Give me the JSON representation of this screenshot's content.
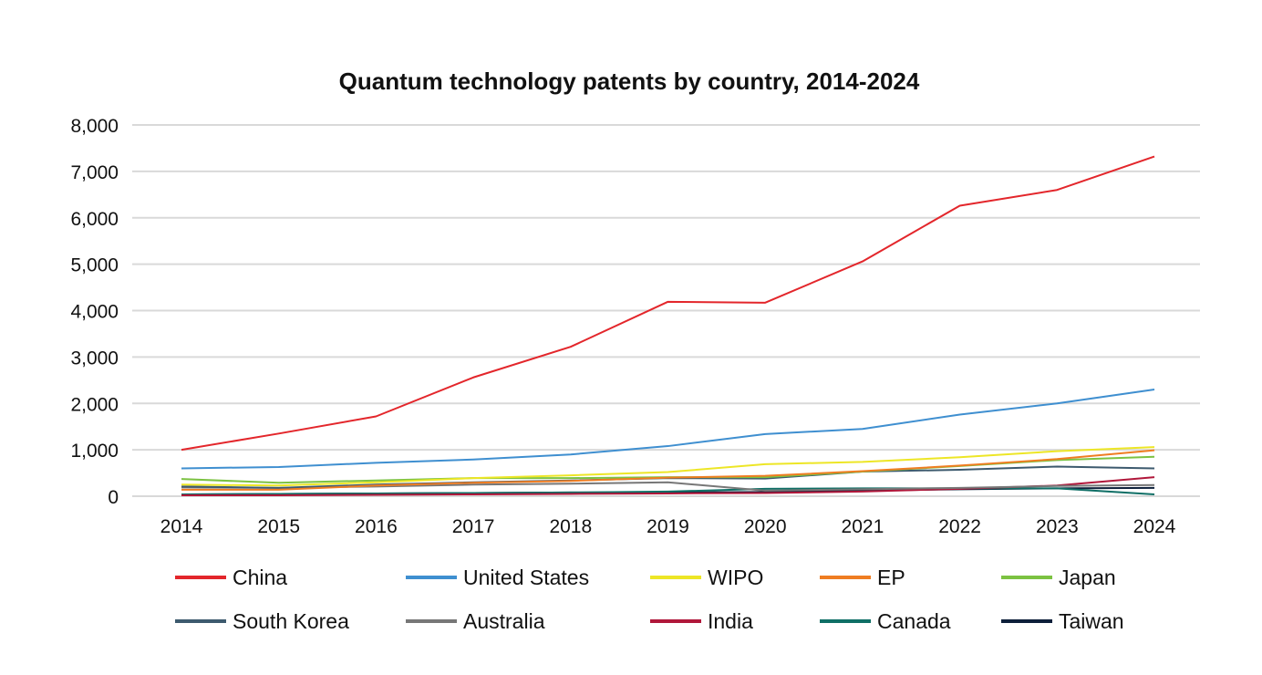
{
  "chart_data": {
    "type": "line",
    "title": "Quantum technology patents by country, 2014-2024",
    "xlabel": "",
    "ylabel": "",
    "x": [
      "2014",
      "2015",
      "2016",
      "2017",
      "2018",
      "2019",
      "2020",
      "2021",
      "2022",
      "2023",
      "2024"
    ],
    "ylim": [
      0,
      8000
    ],
    "yticks": [
      "0",
      "1,000",
      "2,000",
      "3,000",
      "4,000",
      "5,000",
      "6,000",
      "7,000",
      "8,000"
    ],
    "grid": true,
    "legend_position": "bottom",
    "series": [
      {
        "name": "China",
        "color": "#e3262b",
        "values": [
          1000,
          1350,
          1720,
          2560,
          3220,
          4190,
          4170,
          5060,
          6260,
          6600,
          7320
        ]
      },
      {
        "name": "United States",
        "color": "#3f8fd0",
        "values": [
          600,
          630,
          720,
          790,
          900,
          1080,
          1340,
          1450,
          1760,
          2000,
          2300
        ]
      },
      {
        "name": "WIPO",
        "color": "#ede626",
        "values": [
          250,
          230,
          300,
          390,
          450,
          520,
          690,
          740,
          840,
          970,
          1060
        ]
      },
      {
        "name": "EP",
        "color": "#ef7d22",
        "values": [
          140,
          140,
          230,
          290,
          330,
          400,
          440,
          540,
          660,
          800,
          990
        ]
      },
      {
        "name": "Japan",
        "color": "#7cc242",
        "values": [
          370,
          290,
          340,
          390,
          390,
          410,
          410,
          530,
          650,
          780,
          850
        ]
      },
      {
        "name": "South Korea",
        "color": "#3d5a6e",
        "values": [
          210,
          180,
          250,
          300,
          340,
          390,
          380,
          530,
          570,
          640,
          600
        ]
      },
      {
        "name": "Australia",
        "color": "#777777",
        "values": [
          190,
          180,
          210,
          250,
          270,
          300,
          120,
          150,
          180,
          220,
          240
        ]
      },
      {
        "name": "India",
        "color": "#b0173a",
        "values": [
          20,
          20,
          30,
          40,
          50,
          60,
          70,
          100,
          160,
          230,
          410
        ]
      },
      {
        "name": "Canada",
        "color": "#0f6f66",
        "values": [
          40,
          50,
          60,
          70,
          80,
          100,
          160,
          170,
          170,
          170,
          40
        ]
      },
      {
        "name": "Taiwan",
        "color": "#0d1f3a",
        "values": [
          40,
          50,
          60,
          70,
          80,
          80,
          90,
          120,
          150,
          170,
          180
        ]
      }
    ]
  }
}
